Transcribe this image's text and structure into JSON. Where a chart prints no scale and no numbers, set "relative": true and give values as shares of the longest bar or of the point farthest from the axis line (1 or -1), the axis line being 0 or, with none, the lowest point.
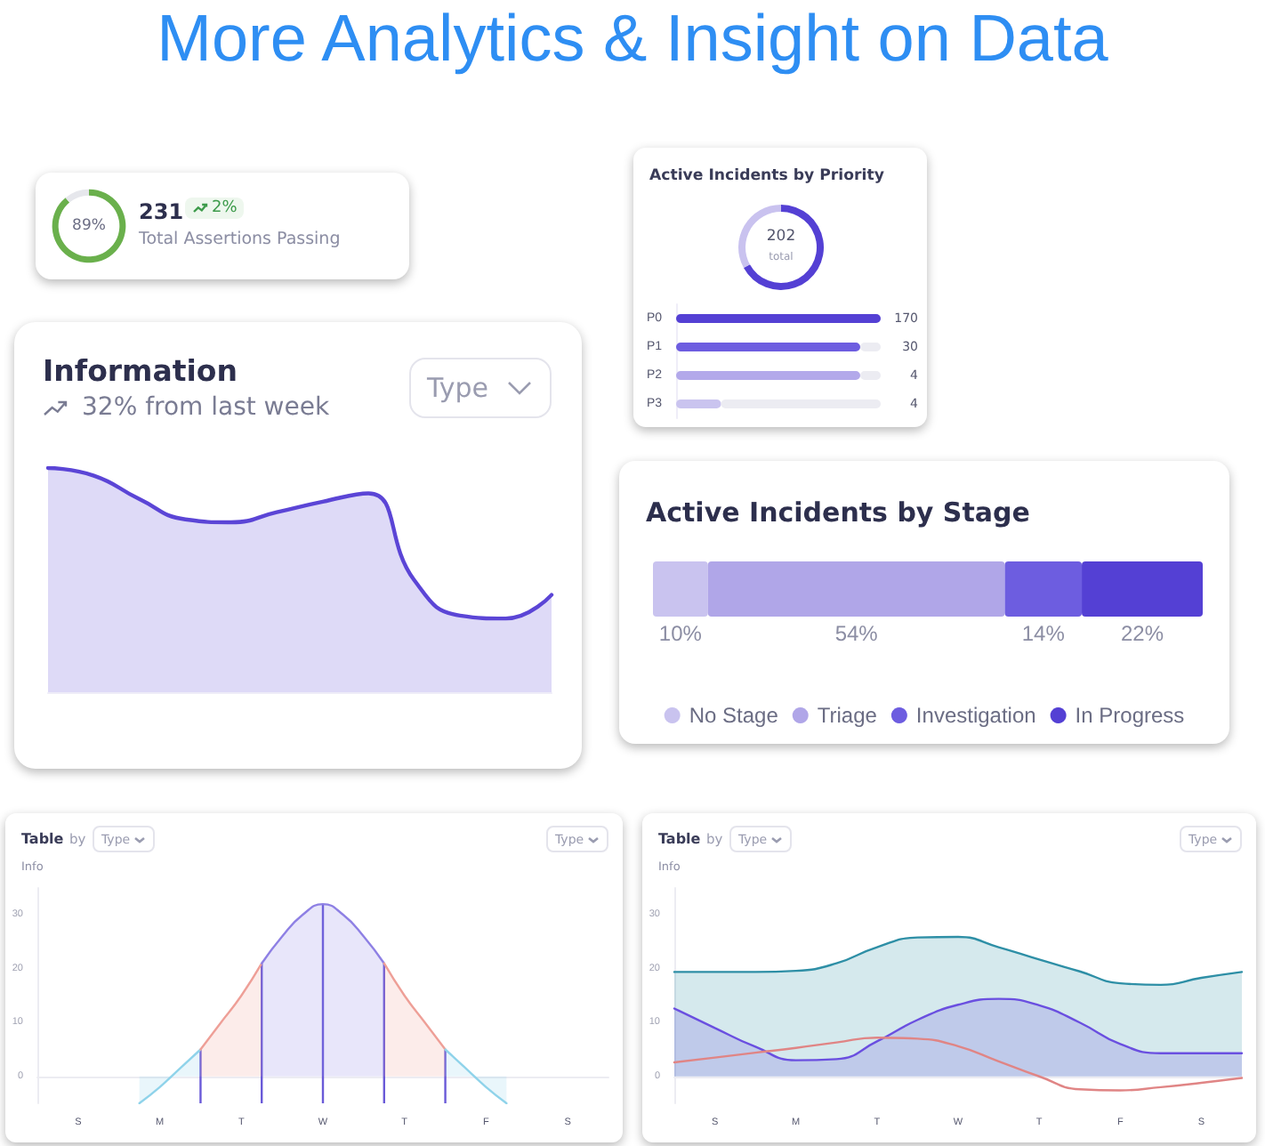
{
  "chart_data": [
    {
      "type": "other",
      "title": "More Analytics & Insight on Data"
    },
    {
      "type": "donut",
      "title": "231",
      "subtitle": "Total Assertions Passing",
      "annotations": [
        "89%",
        "2%"
      ],
      "categories": [
        null,
        null
      ],
      "values": [
        89,
        11
      ],
      "colors": [
        "#6ab04c",
        "#e6e7ec"
      ]
    },
    {
      "type": "area",
      "title": "Information",
      "subtitle": "32% from last week",
      "annotations": [
        "Type"
      ],
      "relative": true,
      "categories": [
        null,
        null,
        null,
        null,
        null,
        null,
        null,
        null,
        null,
        null,
        null,
        null
      ],
      "series": [
        {
          "color": "#5b45d6",
          "values": [
            1,
            0.966,
            0.861,
            0.771,
            0.758,
            0.803,
            0.85,
            0.887,
            0.5,
            0.342,
            0.329,
            0.434
          ]
        }
      ]
    },
    {
      "type": "donut",
      "title": "Active Incidents by Priority",
      "annotations": [
        "202",
        "total"
      ],
      "categories": [
        null,
        null
      ],
      "values": [
        67,
        33
      ],
      "colors": [
        "#5440d4",
        "#c9c2ef"
      ]
    },
    {
      "type": "bar",
      "orientation": "horizontal",
      "stacked": true,
      "relative": true,
      "categories": [
        "P0",
        "P1",
        "P2",
        "P3"
      ],
      "annotations": [
        "170",
        "30",
        "4",
        "4"
      ],
      "series": [
        {
          "color": "#5440d4",
          "colors": [
            "#5440d4",
            "#6d5de0",
            "#b3a9ea",
            "#cac4ef"
          ],
          "values": [
            1,
            0.9,
            0.9,
            0.22
          ]
        },
        {
          "color": "#ececf2",
          "values": [
            0,
            0.1,
            0.1,
            0.78
          ]
        }
      ]
    },
    {
      "type": "bar",
      "orientation": "horizontal",
      "stacked": true,
      "title": "Active Incidents by Stage",
      "categories": [
        null
      ],
      "legend": "bottom",
      "series": [
        {
          "name": "No Stage",
          "color": "#c9c3ef",
          "values": [
            10
          ],
          "value_labels": [
            "10%"
          ]
        },
        {
          "name": "Triage",
          "color": "#b0a6e8",
          "values": [
            54
          ],
          "value_labels": [
            "54%"
          ]
        },
        {
          "name": "Investigation",
          "color": "#6d5de0",
          "values": [
            14
          ],
          "value_labels": [
            "14%"
          ]
        },
        {
          "name": "In Progress",
          "color": "#5440d4",
          "values": [
            22
          ],
          "value_labels": [
            "22%"
          ]
        }
      ]
    },
    {
      "type": "area",
      "title": "Table",
      "ylabel": "Info",
      "annotations": [
        "by",
        "Type",
        "Type"
      ],
      "ylim": [
        -5,
        35
      ],
      "yticks": [
        0,
        10,
        20,
        30
      ],
      "categories": [
        null,
        null,
        "S",
        null,
        null,
        null,
        "M",
        null,
        null,
        null,
        "T",
        null,
        null,
        null,
        "W",
        null,
        null,
        null,
        "T",
        null,
        null,
        null,
        "F",
        null,
        null,
        null,
        "S",
        null,
        null
      ],
      "series": [
        {
          "color": "#8fd3ea",
          "values": [
            null,
            null,
            null,
            null,
            null,
            -5,
            -2,
            1.5,
            5,
            null,
            null,
            null,
            null,
            null,
            null,
            null,
            null,
            null,
            null,
            null,
            null,
            null,
            null,
            null,
            null,
            null,
            null,
            null,
            null
          ]
        },
        {
          "color": "#ee9f97",
          "values": [
            null,
            null,
            null,
            null,
            null,
            null,
            null,
            null,
            5,
            10,
            15,
            21,
            null,
            null,
            null,
            null,
            null,
            null,
            null,
            null,
            null,
            null,
            null,
            null,
            null,
            null,
            null,
            null,
            null
          ]
        },
        {
          "color": "#8e80e4",
          "values": [
            null,
            null,
            null,
            null,
            null,
            null,
            null,
            null,
            null,
            null,
            null,
            21,
            26,
            30,
            32,
            30,
            26,
            21,
            null,
            null,
            null,
            null,
            null,
            null,
            null,
            null,
            null,
            null,
            null
          ]
        },
        {
          "color": "#ee9f97",
          "values": [
            null,
            null,
            null,
            null,
            null,
            null,
            null,
            null,
            null,
            null,
            null,
            null,
            null,
            null,
            null,
            null,
            null,
            21,
            15,
            10,
            5,
            null,
            null,
            null,
            null,
            null,
            null,
            null,
            null
          ]
        },
        {
          "color": "#8fd3ea",
          "values": [
            null,
            null,
            null,
            null,
            null,
            null,
            null,
            null,
            null,
            null,
            null,
            null,
            null,
            null,
            null,
            null,
            null,
            null,
            null,
            null,
            5,
            1.5,
            -2,
            -5,
            null,
            null,
            null,
            null,
            null
          ]
        },
        {
          "type": "bar",
          "color": "#6a5ad8",
          "base": [
            null,
            null,
            null,
            null,
            null,
            null,
            null,
            null,
            -5,
            null,
            null,
            -5,
            null,
            null,
            -5,
            null,
            null,
            -5,
            null,
            null,
            -5,
            null,
            null,
            null,
            null,
            null,
            null,
            null,
            null
          ],
          "values": [
            null,
            null,
            null,
            null,
            null,
            null,
            null,
            null,
            10,
            null,
            null,
            26,
            null,
            null,
            37,
            null,
            null,
            26,
            null,
            null,
            10,
            null,
            null,
            null,
            null,
            null,
            null,
            null,
            null
          ]
        }
      ]
    },
    {
      "type": "line",
      "title": "Table",
      "ylabel": "Info",
      "annotations": [
        "by",
        "Type",
        "Type"
      ],
      "ylim": [
        -5,
        35
      ],
      "yticks": [
        0,
        10,
        20,
        30
      ],
      "categories": [
        null,
        "S",
        null,
        "M",
        null,
        "T",
        null,
        "W",
        null,
        "T",
        null,
        "F",
        null,
        "S",
        null
      ],
      "series": [
        {
          "type": "area",
          "color": "#2e8fa6",
          "values": [
            19.4,
            19.4,
            19.4,
            19.6,
            21,
            24,
            25.8,
            25.9,
            24,
            21.7,
            19.5,
            17.3,
            17,
            18.3,
            19.4
          ]
        },
        {
          "type": "area",
          "color": "#6a4fe0",
          "values": [
            12.6,
            9,
            5.5,
            3,
            3.2,
            6.5,
            10.5,
            13.3,
            14.4,
            13.2,
            10,
            6,
            4.3,
            4.3,
            4.3
          ]
        },
        {
          "type": "line",
          "color": "#e08585",
          "values": [
            2.6,
            3.5,
            4.4,
            5.3,
            6.3,
            7.2,
            7,
            5.6,
            2.8,
            0,
            -2.4,
            -2.6,
            -2,
            -1.2,
            -0.3
          ]
        }
      ]
    }
  ]
}
